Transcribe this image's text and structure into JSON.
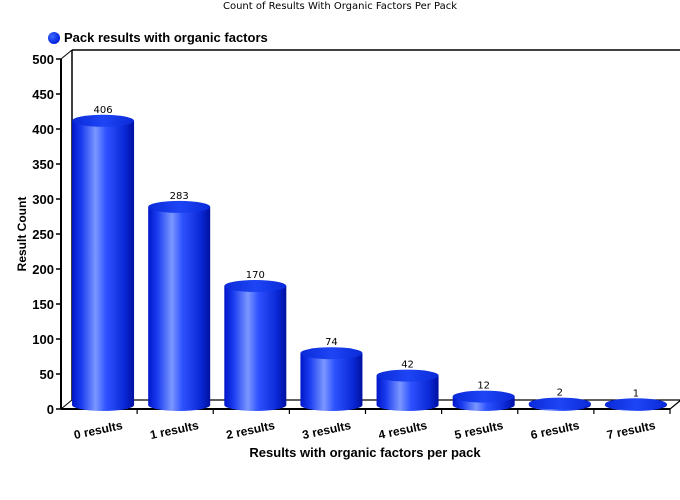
{
  "chart": {
    "title": "Count of Results With Organic Factors Per Pack",
    "legend_label": "Pack results with organic factors",
    "xlabel": "Results with organic factors per pack",
    "ylabel": "Result Count",
    "series_color": "#0a2ee8",
    "y_ticks": [
      "0",
      "50",
      "100",
      "150",
      "200",
      "250",
      "300",
      "350",
      "400",
      "450",
      "500"
    ]
  },
  "chart_data": {
    "type": "bar",
    "title": "Count of Results With Organic Factors Per Pack",
    "xlabel": "Results with organic factors per pack",
    "ylabel": "Result Count",
    "categories": [
      "0 results",
      "1 results",
      "2 results",
      "3 results",
      "4 results",
      "5 results",
      "6 results",
      "7 results"
    ],
    "series": [
      {
        "name": "Pack results with organic factors",
        "values": [
          406,
          283,
          170,
          74,
          42,
          12,
          2,
          1
        ]
      }
    ],
    "ylim": [
      0,
      500
    ],
    "y_tick_step": 50,
    "grid": false,
    "legend_position": "top-left",
    "style": "3d-cylinder"
  }
}
